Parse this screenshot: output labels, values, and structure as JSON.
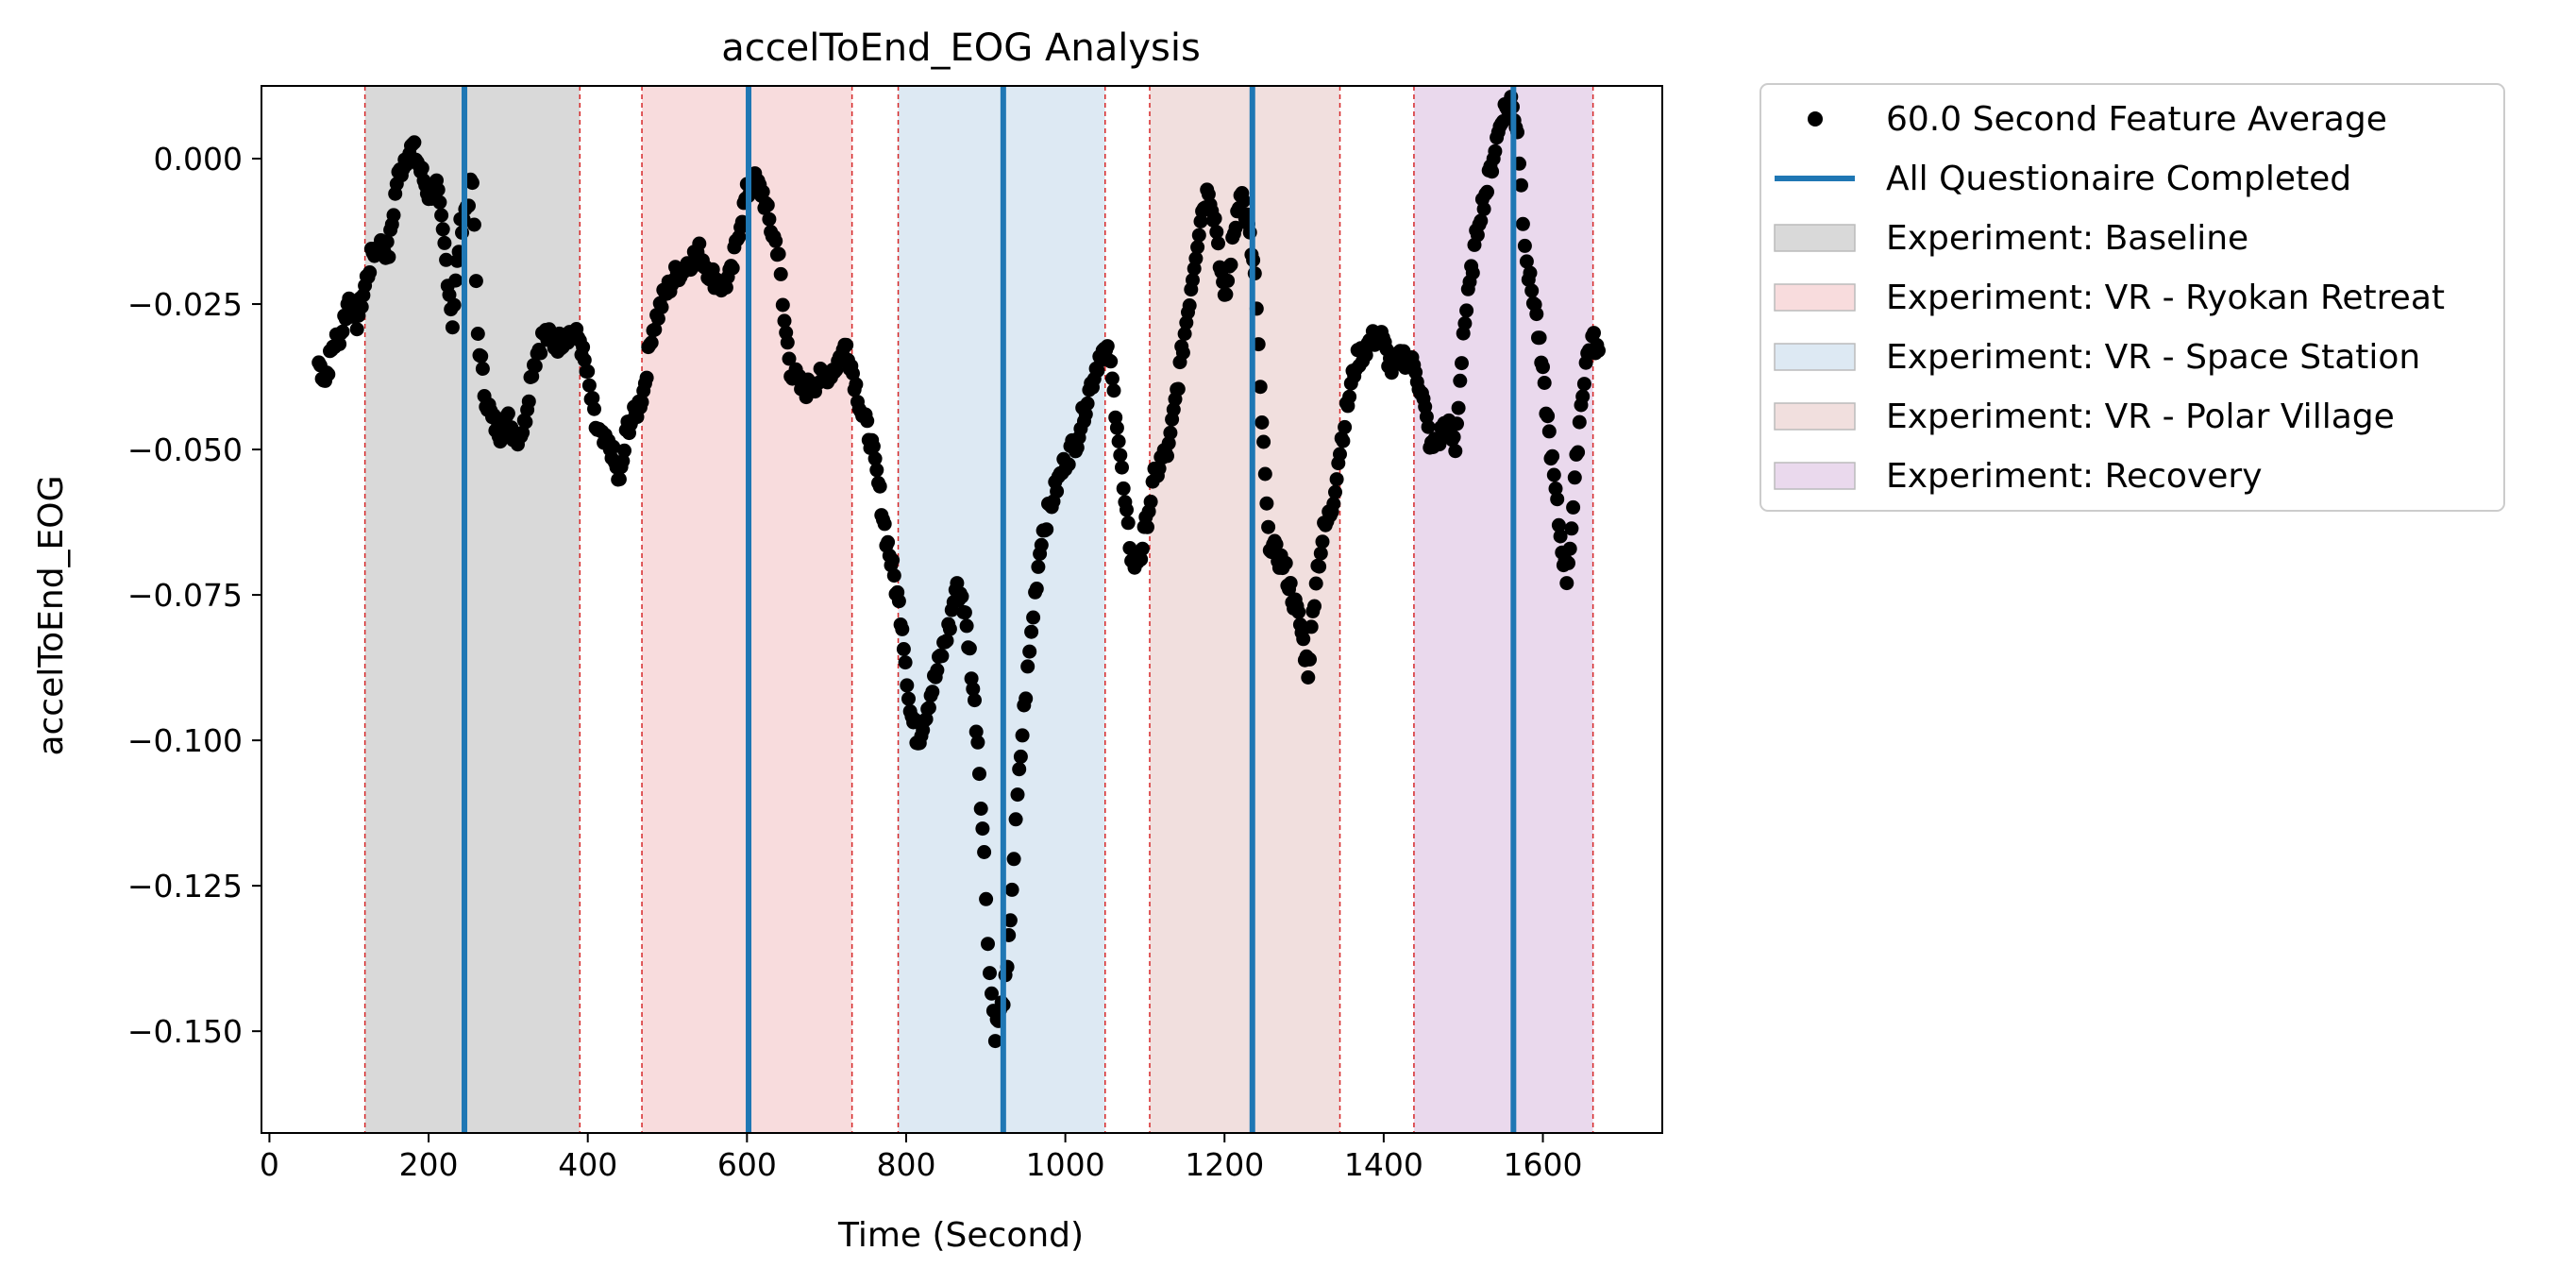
{
  "chart_data": {
    "type": "scatter",
    "title": "accelToEnd_EOG Analysis",
    "xlabel": "Time (Second)",
    "ylabel": "accelToEnd_EOG",
    "xlim": [
      -10,
      1750
    ],
    "ylim": [
      -0.1675,
      0.0125
    ],
    "xticks": [
      0,
      200,
      400,
      600,
      800,
      1000,
      1200,
      1400,
      1600
    ],
    "xtick_labels": [
      "0",
      "200",
      "400",
      "600",
      "800",
      "1000",
      "1200",
      "1400",
      "1600"
    ],
    "yticks": [
      0.0,
      -0.025,
      -0.05,
      -0.075,
      -0.1,
      -0.125,
      -0.15
    ],
    "ytick_labels": [
      "0.000",
      "−0.025",
      "−0.050",
      "−0.075",
      "−0.100",
      "−0.125",
      "−0.150"
    ],
    "series": [
      {
        "name": "60.0 Second Feature Average",
        "color": "#000000",
        "anchors": [
          [
            62,
            -0.035
          ],
          [
            70,
            -0.038
          ],
          [
            80,
            -0.032
          ],
          [
            90,
            -0.03
          ],
          [
            100,
            -0.024
          ],
          [
            110,
            -0.028
          ],
          [
            120,
            -0.022
          ],
          [
            130,
            -0.016
          ],
          [
            140,
            -0.015
          ],
          [
            150,
            -0.016
          ],
          [
            160,
            -0.004
          ],
          [
            170,
            0.0
          ],
          [
            180,
            0.002
          ],
          [
            190,
            -0.002
          ],
          [
            200,
            -0.006
          ],
          [
            210,
            -0.005
          ],
          [
            220,
            -0.015
          ],
          [
            230,
            -0.028
          ],
          [
            240,
            -0.012
          ],
          [
            248,
            -0.008
          ],
          [
            255,
            -0.004
          ],
          [
            262,
            -0.03
          ],
          [
            270,
            -0.04
          ],
          [
            280,
            -0.045
          ],
          [
            290,
            -0.047
          ],
          [
            300,
            -0.045
          ],
          [
            310,
            -0.048
          ],
          [
            320,
            -0.046
          ],
          [
            330,
            -0.036
          ],
          [
            345,
            -0.03
          ],
          [
            360,
            -0.032
          ],
          [
            375,
            -0.03
          ],
          [
            390,
            -0.031
          ],
          [
            400,
            -0.038
          ],
          [
            410,
            -0.046
          ],
          [
            420,
            -0.049
          ],
          [
            430,
            -0.05
          ],
          [
            440,
            -0.056
          ],
          [
            450,
            -0.046
          ],
          [
            460,
            -0.044
          ],
          [
            470,
            -0.04
          ],
          [
            480,
            -0.03
          ],
          [
            495,
            -0.024
          ],
          [
            510,
            -0.02
          ],
          [
            525,
            -0.018
          ],
          [
            540,
            -0.016
          ],
          [
            555,
            -0.02
          ],
          [
            570,
            -0.022
          ],
          [
            580,
            -0.02
          ],
          [
            590,
            -0.012
          ],
          [
            600,
            -0.006
          ],
          [
            610,
            -0.004
          ],
          [
            620,
            -0.006
          ],
          [
            630,
            -0.012
          ],
          [
            640,
            -0.016
          ],
          [
            645,
            -0.026
          ],
          [
            655,
            -0.036
          ],
          [
            670,
            -0.04
          ],
          [
            690,
            -0.038
          ],
          [
            710,
            -0.036
          ],
          [
            725,
            -0.032
          ],
          [
            735,
            -0.038
          ],
          [
            745,
            -0.044
          ],
          [
            755,
            -0.048
          ],
          [
            765,
            -0.056
          ],
          [
            775,
            -0.065
          ],
          [
            785,
            -0.072
          ],
          [
            795,
            -0.08
          ],
          [
            805,
            -0.095
          ],
          [
            815,
            -0.1
          ],
          [
            825,
            -0.095
          ],
          [
            835,
            -0.09
          ],
          [
            845,
            -0.085
          ],
          [
            855,
            -0.08
          ],
          [
            862,
            -0.074
          ],
          [
            870,
            -0.075
          ],
          [
            880,
            -0.085
          ],
          [
            890,
            -0.1
          ],
          [
            898,
            -0.12
          ],
          [
            905,
            -0.14
          ],
          [
            912,
            -0.15
          ],
          [
            920,
            -0.146
          ],
          [
            927,
            -0.14
          ],
          [
            933,
            -0.125
          ],
          [
            940,
            -0.11
          ],
          [
            948,
            -0.095
          ],
          [
            955,
            -0.085
          ],
          [
            962,
            -0.075
          ],
          [
            970,
            -0.065
          ],
          [
            985,
            -0.058
          ],
          [
            1000,
            -0.052
          ],
          [
            1015,
            -0.048
          ],
          [
            1030,
            -0.04
          ],
          [
            1045,
            -0.033
          ],
          [
            1055,
            -0.034
          ],
          [
            1065,
            -0.045
          ],
          [
            1075,
            -0.06
          ],
          [
            1085,
            -0.07
          ],
          [
            1095,
            -0.068
          ],
          [
            1105,
            -0.06
          ],
          [
            1112,
            -0.055
          ],
          [
            1120,
            -0.052
          ],
          [
            1130,
            -0.05
          ],
          [
            1140,
            -0.04
          ],
          [
            1150,
            -0.03
          ],
          [
            1160,
            -0.02
          ],
          [
            1170,
            -0.01
          ],
          [
            1180,
            -0.005
          ],
          [
            1190,
            -0.012
          ],
          [
            1200,
            -0.025
          ],
          [
            1210,
            -0.015
          ],
          [
            1220,
            -0.005
          ],
          [
            1230,
            -0.012
          ],
          [
            1238,
            -0.02
          ],
          [
            1245,
            -0.04
          ],
          [
            1255,
            -0.065
          ],
          [
            1265,
            -0.068
          ],
          [
            1275,
            -0.07
          ],
          [
            1285,
            -0.075
          ],
          [
            1295,
            -0.08
          ],
          [
            1305,
            -0.088
          ],
          [
            1315,
            -0.072
          ],
          [
            1325,
            -0.064
          ],
          [
            1335,
            -0.06
          ],
          [
            1345,
            -0.05
          ],
          [
            1355,
            -0.042
          ],
          [
            1365,
            -0.035
          ],
          [
            1380,
            -0.032
          ],
          [
            1395,
            -0.03
          ],
          [
            1410,
            -0.036
          ],
          [
            1425,
            -0.034
          ],
          [
            1440,
            -0.036
          ],
          [
            1450,
            -0.042
          ],
          [
            1460,
            -0.05
          ],
          [
            1470,
            -0.048
          ],
          [
            1480,
            -0.045
          ],
          [
            1490,
            -0.05
          ],
          [
            1500,
            -0.03
          ],
          [
            1510,
            -0.02
          ],
          [
            1520,
            -0.01
          ],
          [
            1530,
            -0.005
          ],
          [
            1540,
            0.002
          ],
          [
            1550,
            0.008
          ],
          [
            1560,
            0.01
          ],
          [
            1568,
            0.005
          ],
          [
            1575,
            -0.01
          ],
          [
            1582,
            -0.02
          ],
          [
            1590,
            -0.025
          ],
          [
            1598,
            -0.035
          ],
          [
            1606,
            -0.045
          ],
          [
            1614,
            -0.055
          ],
          [
            1622,
            -0.065
          ],
          [
            1630,
            -0.072
          ],
          [
            1638,
            -0.06
          ],
          [
            1646,
            -0.045
          ],
          [
            1654,
            -0.035
          ],
          [
            1662,
            -0.031
          ],
          [
            1670,
            -0.033
          ]
        ]
      }
    ],
    "vlines": {
      "name": "All Questionaire Completed",
      "color": "#1f77b4",
      "x": [
        245,
        602,
        922,
        1235,
        1563
      ]
    },
    "spans": [
      {
        "name": "Experiment: Baseline",
        "start": 120,
        "end": 390,
        "color": "#d9d9d9"
      },
      {
        "name": "Experiment: VR - Ryokan Retreat",
        "start": 468,
        "end": 732,
        "color": "#f8dcdd"
      },
      {
        "name": "Experiment: VR - Space Station",
        "start": 790,
        "end": 1050,
        "color": "#dde9f3"
      },
      {
        "name": "Experiment: VR - Polar Village",
        "start": 1106,
        "end": 1345,
        "color": "#f1dfde"
      },
      {
        "name": "Experiment: Recovery",
        "start": 1438,
        "end": 1663,
        "color": "#ead9ed"
      }
    ],
    "span_edge_color": "#d62728",
    "legend": {
      "placement": "outside-top-right",
      "entries": [
        "60.0 Second Feature Average",
        "All Questionaire Completed",
        "Experiment: Baseline",
        "Experiment: VR - Ryokan Retreat",
        "Experiment: VR - Space Station",
        "Experiment: VR - Polar Village",
        "Experiment: Recovery"
      ]
    },
    "grid": false
  }
}
